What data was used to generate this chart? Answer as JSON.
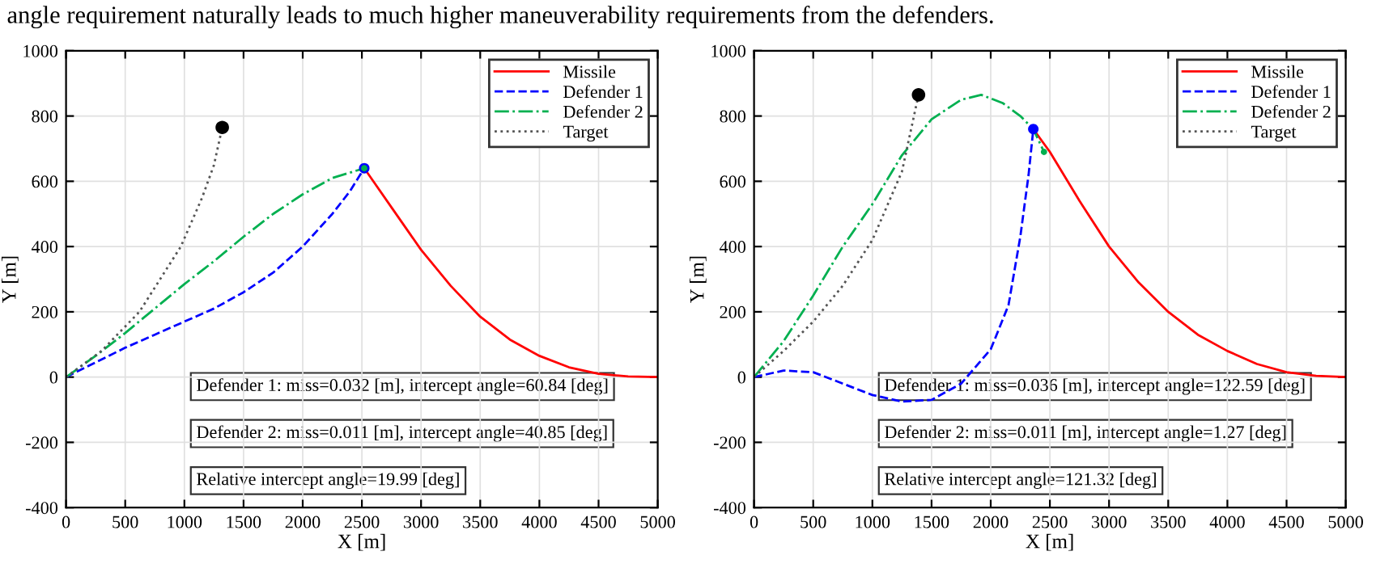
{
  "chart_data": [
    {
      "type": "line",
      "xlabel": "X [m]",
      "ylabel": "Y [m]",
      "xlim": [
        0,
        5000
      ],
      "ylim": [
        -400,
        1000
      ],
      "xticks": [
        0,
        500,
        1000,
        1500,
        2000,
        2500,
        3000,
        3500,
        4000,
        4500,
        5000
      ],
      "yticks": [
        -400,
        -200,
        0,
        200,
        400,
        600,
        800,
        1000
      ],
      "grid": true,
      "legend": "top right",
      "annotations": [
        "angle requirement naturally leads to much higher maneuverability requirements from the defenders.",
        "Defender 1: miss=0.032 [m], intercept angle=60.84 [deg]",
        "Defender 2: miss=0.011 [m], intercept angle=40.85 [deg]",
        "Relative intercept angle=19.99 [deg]"
      ],
      "series": [
        {
          "name": "Missile",
          "color": "#ff0000",
          "line_style": "solid",
          "x": [
            2520,
            2750,
            3000,
            3250,
            3500,
            3750,
            4000,
            4250,
            4500,
            4750,
            5000
          ],
          "values": [
            640,
            520,
            390,
            280,
            185,
            115,
            65,
            30,
            10,
            2,
            0
          ]
        },
        {
          "name": "Defender 1",
          "color": "#0000ff",
          "line_style": "dashed",
          "x": [
            0,
            250,
            500,
            750,
            1000,
            1250,
            1500,
            1750,
            2000,
            2250,
            2400,
            2520
          ],
          "values": [
            0,
            45,
            90,
            130,
            170,
            210,
            260,
            320,
            400,
            500,
            570,
            640
          ]
        },
        {
          "name": "Defender 2",
          "color": "#00b050",
          "line_style": "dashdot",
          "x": [
            0,
            250,
            500,
            750,
            1000,
            1250,
            1500,
            1750,
            2000,
            2250,
            2520
          ],
          "values": [
            0,
            65,
            135,
            210,
            285,
            355,
            430,
            500,
            560,
            610,
            640
          ]
        },
        {
          "name": "Target",
          "color": "#555555",
          "line_style": "dotted",
          "x": [
            0,
            300,
            620,
            970,
            1150,
            1250,
            1320
          ],
          "values": [
            0,
            80,
            200,
            400,
            550,
            650,
            765
          ]
        },
        {
          "type": "scatter",
          "color": "#000000",
          "x": [
            1320
          ],
          "values": [
            765
          ]
        },
        {
          "type": "scatter",
          "color": "#0000ff",
          "x": [
            2520
          ],
          "values": [
            640
          ]
        },
        {
          "type": "scatter",
          "color": "#00b050",
          "x": [
            2520
          ],
          "values": [
            640
          ]
        }
      ]
    },
    {
      "type": "line",
      "xlabel": "X [m]",
      "ylabel": "Y [m]",
      "xlim": [
        0,
        5000
      ],
      "ylim": [
        -400,
        1000
      ],
      "xticks": [
        0,
        500,
        1000,
        1500,
        2000,
        2500,
        3000,
        3500,
        4000,
        4500,
        5000
      ],
      "yticks": [
        -400,
        -200,
        0,
        200,
        400,
        600,
        800,
        1000
      ],
      "grid": true,
      "legend": "top right",
      "annotations": [
        "Defender 1: miss=0.036 [m], intercept angle=122.59 [deg]",
        "Defender 2: miss=0.011 [m], intercept angle=1.27 [deg]",
        "Relative intercept angle=121.32 [deg]"
      ],
      "series": [
        {
          "name": "Missile",
          "color": "#ff0000",
          "line_style": "solid",
          "x": [
            2360,
            2500,
            2750,
            3000,
            3250,
            3500,
            3750,
            4000,
            4250,
            4500,
            4750,
            5000
          ],
          "values": [
            760,
            690,
            540,
            400,
            290,
            200,
            130,
            80,
            40,
            15,
            4,
            0
          ]
        },
        {
          "name": "Defender 1",
          "color": "#0000ff",
          "line_style": "dashed",
          "x": [
            0,
            250,
            500,
            750,
            1000,
            1250,
            1500,
            1750,
            2000,
            2150,
            2250,
            2320,
            2360
          ],
          "values": [
            0,
            20,
            15,
            -20,
            -55,
            -75,
            -70,
            -20,
            85,
            220,
            430,
            620,
            760
          ]
        },
        {
          "name": "Defender 2",
          "color": "#00b050",
          "line_style": "dashdot",
          "x": [
            0,
            250,
            500,
            750,
            1000,
            1250,
            1500,
            1750,
            1920,
            2100,
            2250,
            2360,
            2450
          ],
          "values": [
            0,
            110,
            250,
            400,
            530,
            680,
            790,
            850,
            865,
            840,
            800,
            760,
            690
          ]
        },
        {
          "name": "Target",
          "color": "#555555",
          "line_style": "dotted",
          "x": [
            0,
            250,
            500,
            750,
            1000,
            1250,
            1390
          ],
          "values": [
            0,
            80,
            170,
            280,
            420,
            630,
            865
          ]
        },
        {
          "type": "scatter",
          "color": "#000000",
          "x": [
            1390
          ],
          "values": [
            865
          ]
        },
        {
          "type": "scatter",
          "color": "#0000ff",
          "x": [
            2360
          ],
          "values": [
            760
          ]
        },
        {
          "type": "scatter",
          "color": "#00b050",
          "x": [
            2450
          ],
          "values": [
            690
          ]
        }
      ]
    }
  ]
}
